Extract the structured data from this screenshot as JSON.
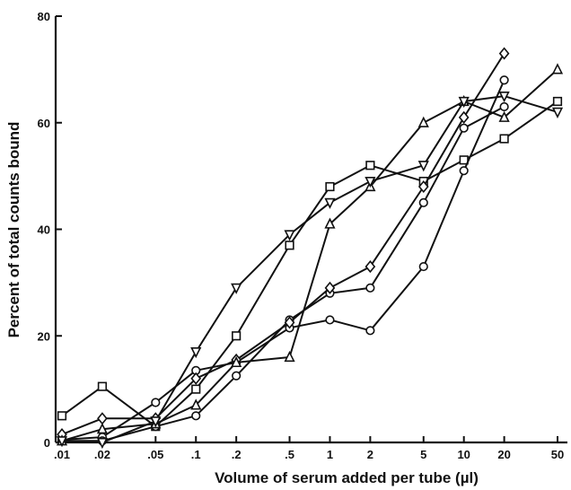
{
  "chart_data": {
    "type": "line",
    "title": "",
    "xlabel": "Volume of serum added per tube (µl)",
    "ylabel": "Percent of total counts bound",
    "x_scale": "log",
    "x_categories": [
      ".01",
      ".02",
      ".05",
      ".1",
      ".2",
      ".5",
      "1",
      "2",
      "5",
      "10",
      "20",
      "50"
    ],
    "x": [
      0.01,
      0.02,
      0.05,
      0.1,
      0.2,
      0.5,
      1,
      2,
      5,
      10,
      20,
      50
    ],
    "ylim": [
      0,
      80
    ],
    "yticks": [
      0,
      20,
      40,
      60,
      80
    ],
    "grid": false,
    "series": [
      {
        "marker": "square",
        "values": [
          5,
          10.5,
          3,
          10,
          20,
          37,
          48,
          52,
          49,
          53,
          57,
          64
        ]
      },
      {
        "marker": "circle",
        "values": [
          0.5,
          1,
          7.5,
          13.5,
          15,
          21.5,
          23,
          21,
          33,
          51,
          68,
          null
        ]
      },
      {
        "marker": "circle",
        "values": [
          0.3,
          0.3,
          3,
          5,
          12.5,
          23,
          28,
          29,
          45,
          59,
          63,
          null
        ]
      },
      {
        "marker": "diamond",
        "values": [
          1.5,
          4.5,
          4.5,
          12,
          15.5,
          22.5,
          29,
          33,
          48,
          61,
          73,
          null
        ]
      },
      {
        "marker": "triangle-up",
        "values": [
          0.3,
          2.5,
          3.5,
          7,
          15,
          16,
          41,
          48,
          60,
          64,
          61,
          70
        ]
      },
      {
        "marker": "triangle-down",
        "values": [
          0.3,
          0,
          4,
          17,
          29,
          39,
          45,
          49,
          52,
          64,
          65,
          62
        ]
      }
    ]
  }
}
